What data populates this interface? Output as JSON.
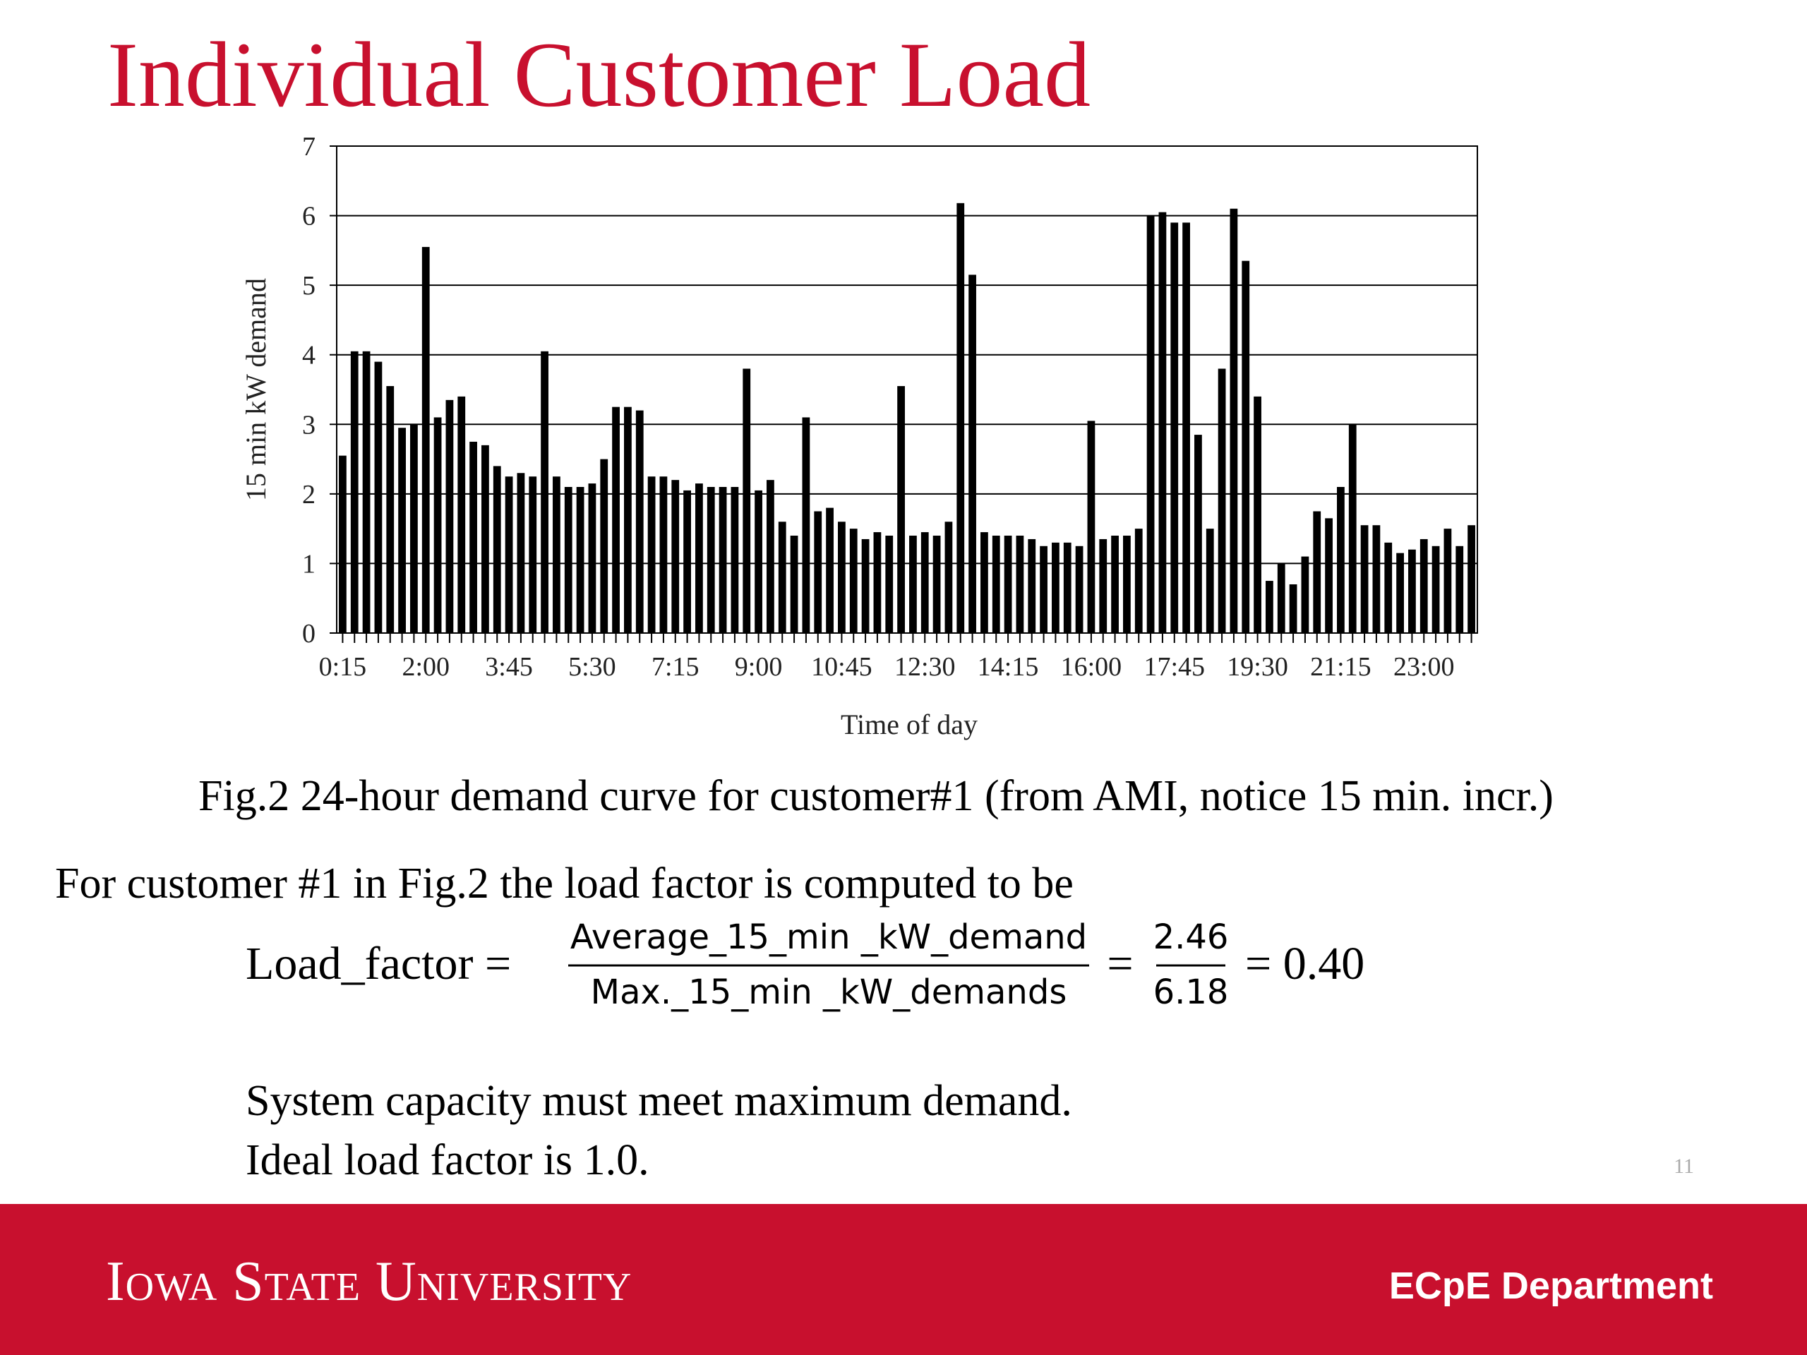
{
  "slide": {
    "title": "Individual Customer Load",
    "caption": "Fig.2 24-hour demand curve for customer#1 (from AMI, notice 15 min. incr.)",
    "intro": "For customer #1 in Fig.2 the load factor is computed to be",
    "equation": {
      "lhs": "Load_factor =",
      "numerator": "Average_15_min _kW_demand",
      "denominator": "Max._15_min _kW_demands",
      "eq1": "=",
      "num_value": "2.46",
      "den_value": "6.18",
      "result": "= 0.40"
    },
    "notes": [
      "System capacity must meet maximum demand.",
      "Ideal load factor is 1.0."
    ],
    "page_number": "11",
    "footer_left": "Iowa State University",
    "footer_right": "ECpE Department"
  },
  "chart_data": {
    "type": "bar",
    "x_label": "Time of day",
    "y_label": "15 min kW demand",
    "color": "#000000",
    "grid": true,
    "ylim": [
      0,
      7
    ],
    "yticks": [
      0,
      1,
      2,
      3,
      4,
      5,
      6,
      7
    ],
    "categories": [
      "0:15",
      null,
      null,
      null,
      null,
      null,
      null,
      "2:00",
      null,
      null,
      null,
      null,
      null,
      null,
      "3:45",
      null,
      null,
      null,
      null,
      null,
      null,
      "5:30",
      null,
      null,
      null,
      null,
      null,
      null,
      "7:15",
      null,
      null,
      null,
      null,
      null,
      null,
      "9:00",
      null,
      null,
      null,
      null,
      null,
      null,
      "10:45",
      null,
      null,
      null,
      null,
      null,
      null,
      "12:30",
      null,
      null,
      null,
      null,
      null,
      null,
      "14:15",
      null,
      null,
      null,
      null,
      null,
      null,
      "16:00",
      null,
      null,
      null,
      null,
      null,
      null,
      "17:45",
      null,
      null,
      null,
      null,
      null,
      null,
      "19:30",
      null,
      null,
      null,
      null,
      null,
      null,
      "21:15",
      null,
      null,
      null,
      null,
      null,
      null,
      "23:00",
      null,
      null,
      null,
      null
    ],
    "values": [
      2.55,
      4.05,
      4.05,
      3.9,
      3.55,
      2.95,
      3.0,
      5.55,
      3.1,
      3.35,
      3.4,
      2.75,
      2.7,
      2.4,
      2.25,
      2.3,
      2.25,
      4.05,
      2.25,
      2.1,
      2.1,
      2.15,
      2.5,
      3.25,
      3.25,
      3.2,
      2.25,
      2.25,
      2.2,
      2.05,
      2.15,
      2.1,
      2.1,
      2.1,
      3.8,
      2.05,
      2.2,
      1.6,
      1.4,
      3.1,
      1.75,
      1.8,
      1.6,
      1.5,
      1.35,
      1.45,
      1.4,
      3.55,
      1.4,
      1.45,
      1.4,
      1.6,
      6.18,
      5.15,
      1.45,
      1.4,
      1.4,
      1.4,
      1.35,
      1.25,
      1.3,
      1.3,
      1.25,
      3.05,
      1.35,
      1.4,
      1.4,
      1.5,
      6.0,
      6.05,
      5.9,
      5.9,
      2.85,
      1.5,
      3.8,
      6.1,
      5.35,
      3.4,
      0.75,
      1.0,
      0.7,
      1.1,
      1.75,
      1.65,
      2.1,
      3.0,
      1.55,
      1.55,
      1.3,
      1.15,
      1.2,
      1.35,
      1.25,
      1.5,
      1.25,
      1.55
    ]
  }
}
